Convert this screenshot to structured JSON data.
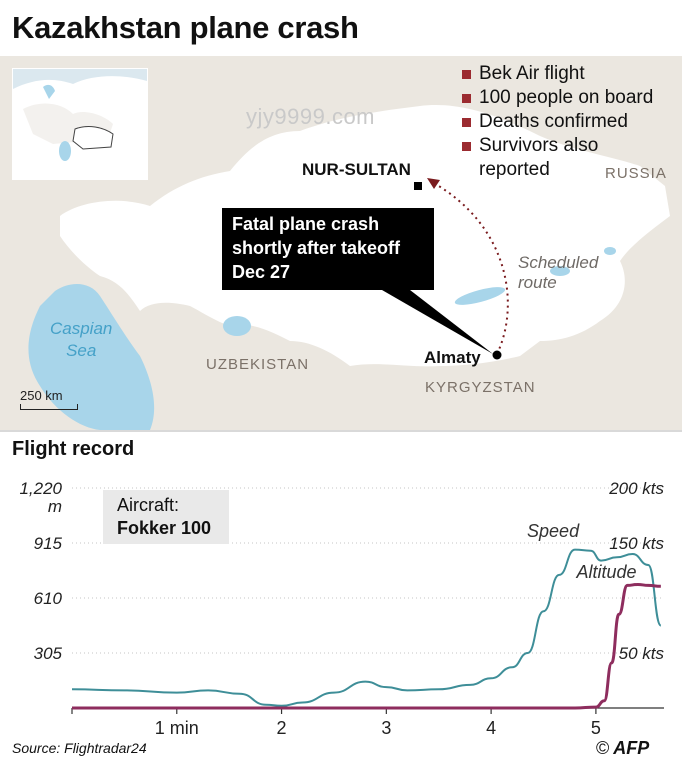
{
  "title": "Kazakhstan plane crash",
  "watermark": "yjy9999.com",
  "map": {
    "legend": [
      "Bek Air flight",
      "100 people on board",
      "Deaths confirmed",
      "Survivors also reported"
    ],
    "callout": [
      "Fatal plane crash",
      "shortly after takeoff",
      "Dec 27"
    ],
    "cities": {
      "nur_sultan": "NUR-SULTAN",
      "almaty": "Almaty"
    },
    "countries": {
      "russia": "RUSSIA",
      "uzbekistan": "UZBEKISTAN",
      "kyrgyzstan": "KYRGYZSTAN"
    },
    "sea": [
      "Caspian",
      "Sea"
    ],
    "route": [
      "Scheduled",
      "route"
    ],
    "scale": "250 km",
    "colors": {
      "land": "#ffffff",
      "neighbor": "#ebe7e0",
      "water": "#a8d5ea",
      "route": "#7a1b1e",
      "legend_marker": "#9b2b30",
      "callout_bg": "#000000"
    }
  },
  "subtitle": "Flight record",
  "aircraft": {
    "label": "Aircraft:",
    "value": "Fokker 100"
  },
  "chart_data": {
    "type": "line",
    "title": "Flight record",
    "x_ticks": [
      {
        "v": 1,
        "label": "1 min"
      },
      {
        "v": 2,
        "label": "2"
      },
      {
        "v": 3,
        "label": "3"
      },
      {
        "v": 4,
        "label": "4"
      },
      {
        "v": 5,
        "label": "5"
      }
    ],
    "xlim": [
      0,
      5.65
    ],
    "left_axis": {
      "unit": "m",
      "ylim": [
        0,
        1220
      ],
      "ticks": [
        {
          "v": 305,
          "label": "305"
        },
        {
          "v": 610,
          "label": "610"
        },
        {
          "v": 915,
          "label": "915"
        },
        {
          "v": 1220,
          "label": "1,220"
        }
      ]
    },
    "right_axis": {
      "unit": "kts",
      "ylim": [
        0,
        200
      ],
      "ticks": [
        {
          "v": 50,
          "label": "50 kts"
        },
        {
          "v": 150,
          "label": "150 kts"
        },
        {
          "v": 200,
          "label": "200 kts"
        }
      ]
    },
    "series": [
      {
        "name": "Speed",
        "axis": "right",
        "color": "#3e8e98",
        "x": [
          0,
          0.5,
          1,
          1.3,
          1.6,
          1.85,
          2,
          2.2,
          2.5,
          2.8,
          3,
          3.2,
          3.5,
          3.8,
          4,
          4.2,
          4.35,
          4.5,
          4.65,
          4.8,
          4.95,
          5.05,
          5.2,
          5.35,
          5.5,
          5.62
        ],
        "y": [
          17,
          16,
          14,
          16,
          13,
          3,
          2,
          5,
          14,
          24,
          19,
          16,
          17,
          21,
          27,
          37,
          50,
          88,
          121,
          144,
          143,
          134,
          137,
          140,
          130,
          75
        ]
      },
      {
        "name": "Altitude",
        "axis": "left",
        "color": "#8e2d5e",
        "x": [
          0,
          4.8,
          5.0,
          5.08,
          5.15,
          5.22,
          5.3,
          5.4,
          5.5,
          5.62
        ],
        "y": [
          0,
          0,
          5,
          40,
          250,
          520,
          680,
          685,
          680,
          675
        ]
      }
    ]
  },
  "source": "Source: Flightradar24",
  "credit": {
    "symbol": "©",
    "name": "AFP"
  }
}
